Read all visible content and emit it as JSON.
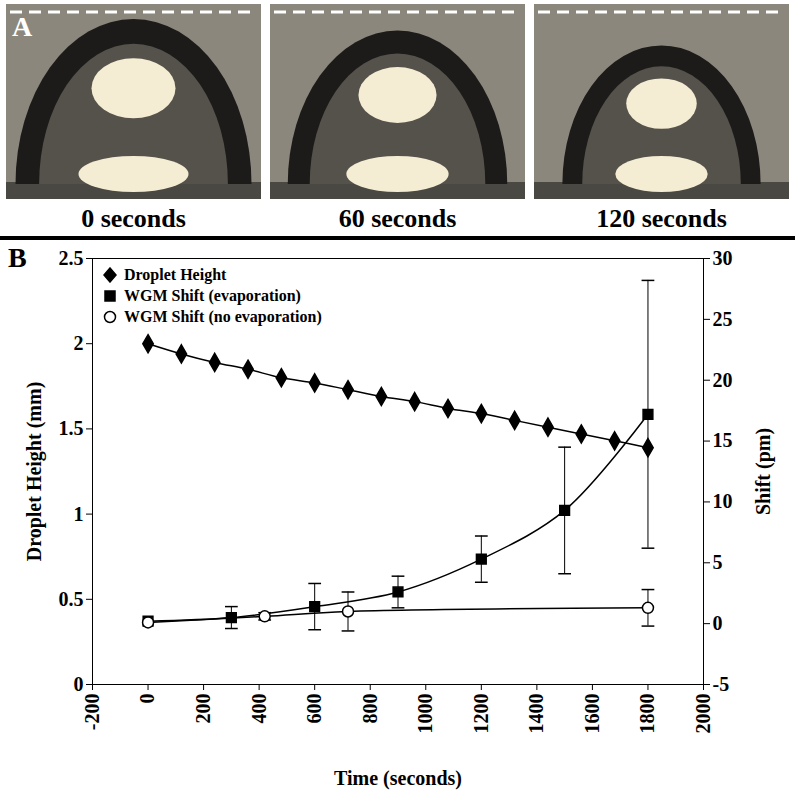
{
  "panel_a": {
    "letter": "A",
    "captions": [
      "0 seconds",
      "60 seconds",
      "120 seconds"
    ]
  },
  "chart_data": {
    "type": "line",
    "panel": "B",
    "x_label": "Time (seconds)",
    "y_label": "Droplet Height (mm)",
    "y2_label": "Shift (pm)",
    "xlim": [
      -200,
      2000
    ],
    "xticks": [
      -200,
      0,
      200,
      400,
      600,
      800,
      1000,
      1200,
      1400,
      1600,
      1800,
      2000
    ],
    "ylim": [
      0,
      2.5
    ],
    "yticks": [
      0,
      0.5,
      1,
      1.5,
      2,
      2.5
    ],
    "y2lim": [
      -5,
      30
    ],
    "y2ticks": [
      -5,
      0,
      5,
      10,
      15,
      20,
      25,
      30
    ],
    "legend": "top-left",
    "series": [
      {
        "name": "Droplet Height",
        "axis": "y",
        "color": "#000000",
        "marker": "diamond",
        "x": [
          0,
          120,
          240,
          360,
          480,
          600,
          720,
          840,
          960,
          1080,
          1200,
          1320,
          1440,
          1560,
          1680,
          1800
        ],
        "values": [
          2.0,
          1.94,
          1.89,
          1.85,
          1.8,
          1.77,
          1.73,
          1.69,
          1.66,
          1.62,
          1.59,
          1.55,
          1.51,
          1.47,
          1.43,
          1.39
        ]
      },
      {
        "name": "WGM Shift (evaporation)",
        "axis": "y2",
        "color": "#000000",
        "marker": "square",
        "x": [
          0,
          300,
          600,
          900,
          1200,
          1500,
          1800
        ],
        "values": [
          0.2,
          0.5,
          1.4,
          2.6,
          5.3,
          9.3,
          17.2
        ],
        "errors": [
          null,
          0.9,
          1.9,
          1.3,
          1.9,
          5.2,
          11
        ]
      },
      {
        "name": "WGM Shift (no evaporation)",
        "axis": "y2",
        "color": "#000000",
        "marker": "open_circle",
        "x": [
          0,
          420,
          720,
          1800
        ],
        "values": [
          0.1,
          0.6,
          1.0,
          1.3
        ],
        "errors": [
          null,
          0.3,
          1.6,
          1.5
        ]
      }
    ]
  }
}
